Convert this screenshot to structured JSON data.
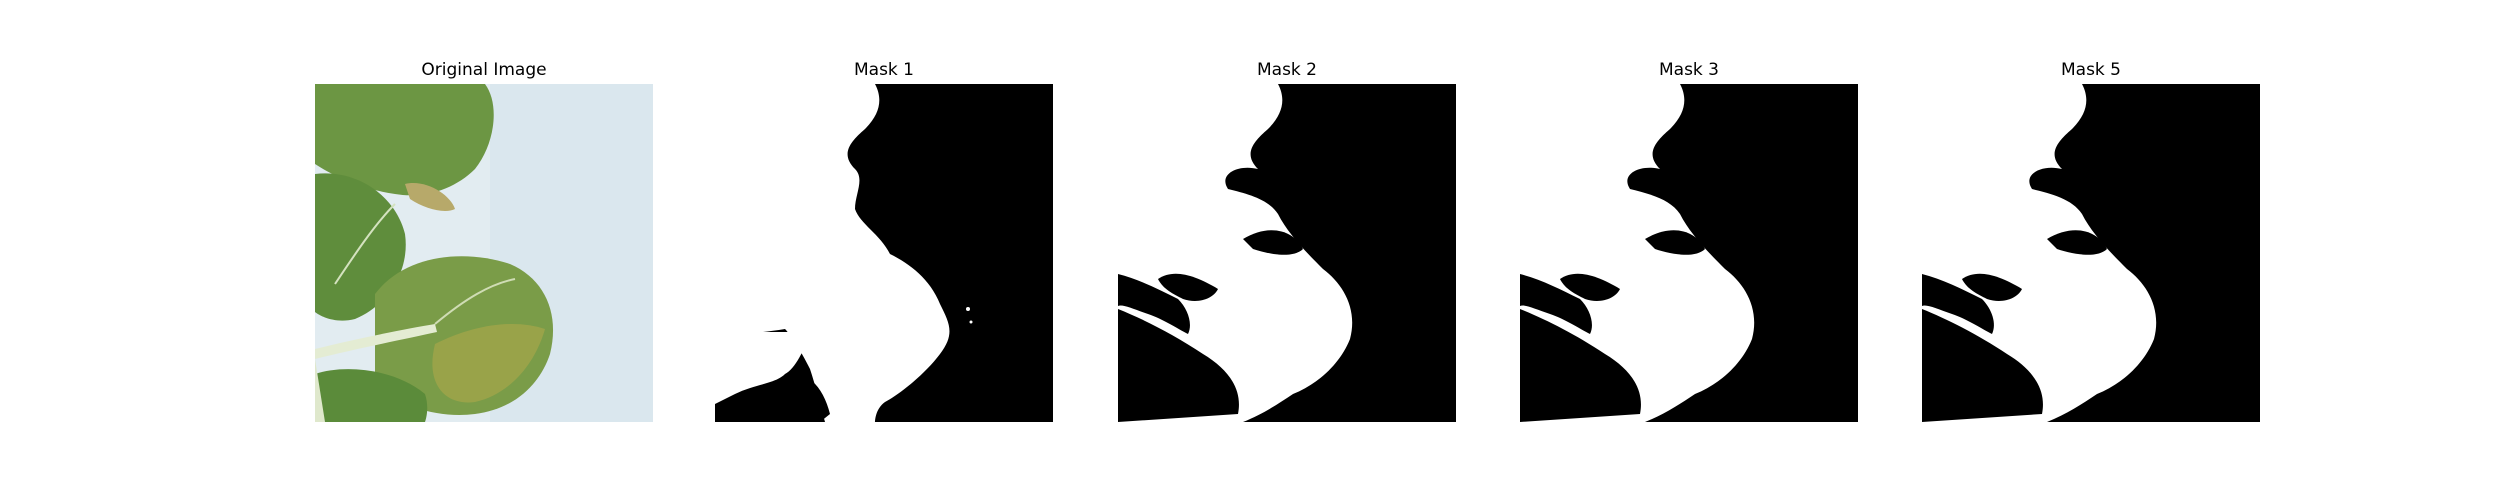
{
  "panels": [
    {
      "id": "original",
      "title": "Original Image"
    },
    {
      "id": "mask1",
      "title": "Mask 1"
    },
    {
      "id": "mask2",
      "title": "Mask 2"
    },
    {
      "id": "mask3",
      "title": "Mask 3"
    },
    {
      "id": "mask5",
      "title": "Mask 5"
    }
  ],
  "colors": {
    "background": "#dfe9ee",
    "leaf": "#6f9a48",
    "leaf_dark": "#4f7a32",
    "leaf_yellow": "#a9a948",
    "stem": "#dfe8cc",
    "mask_foreground": "#ffffff",
    "mask_background": "#000000"
  }
}
